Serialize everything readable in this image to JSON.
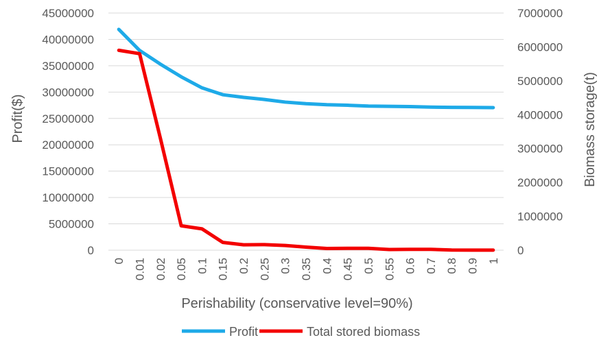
{
  "chart_data": {
    "type": "line",
    "title": "",
    "xlabel": "Perishability (conservative level=90%)",
    "ylabel": "Profit($)",
    "y2label": "Biomass storage(t)",
    "x": [
      "0",
      "0.01",
      "0.02",
      "0.05",
      "0.1",
      "0.15",
      "0.2",
      "0.25",
      "0.3",
      "0.35",
      "0.4",
      "0.45",
      "0.5",
      "0.55",
      "0.6",
      "0.7",
      "0.8",
      "0.9",
      "1"
    ],
    "ylim": [
      0,
      45000000
    ],
    "y2lim": [
      0,
      7000000
    ],
    "yticks": [
      "0",
      "5000000",
      "10000000",
      "15000000",
      "20000000",
      "25000000",
      "30000000",
      "35000000",
      "40000000",
      "45000000"
    ],
    "y2ticks": [
      "0",
      "1000000",
      "2000000",
      "3000000",
      "4000000",
      "5000000",
      "6000000",
      "7000000"
    ],
    "grid": true,
    "legend_position": "bottom",
    "series": [
      {
        "name": "Profit",
        "axis": "left",
        "color": "#1EAAE8",
        "values": [
          41900000,
          37900000,
          35300000,
          32900000,
          30800000,
          29500000,
          29000000,
          28600000,
          28100000,
          27800000,
          27600000,
          27500000,
          27350000,
          27300000,
          27250000,
          27150000,
          27100000,
          27080000,
          27050000
        ]
      },
      {
        "name": "Total stored biomass",
        "axis": "right",
        "color": "#F30000",
        "values": [
          5900000,
          5800000,
          3300000,
          720000,
          630000,
          230000,
          160000,
          165000,
          140000,
          90000,
          50000,
          55000,
          55000,
          20000,
          25000,
          25000,
          5000,
          3000,
          2000
        ]
      }
    ]
  }
}
